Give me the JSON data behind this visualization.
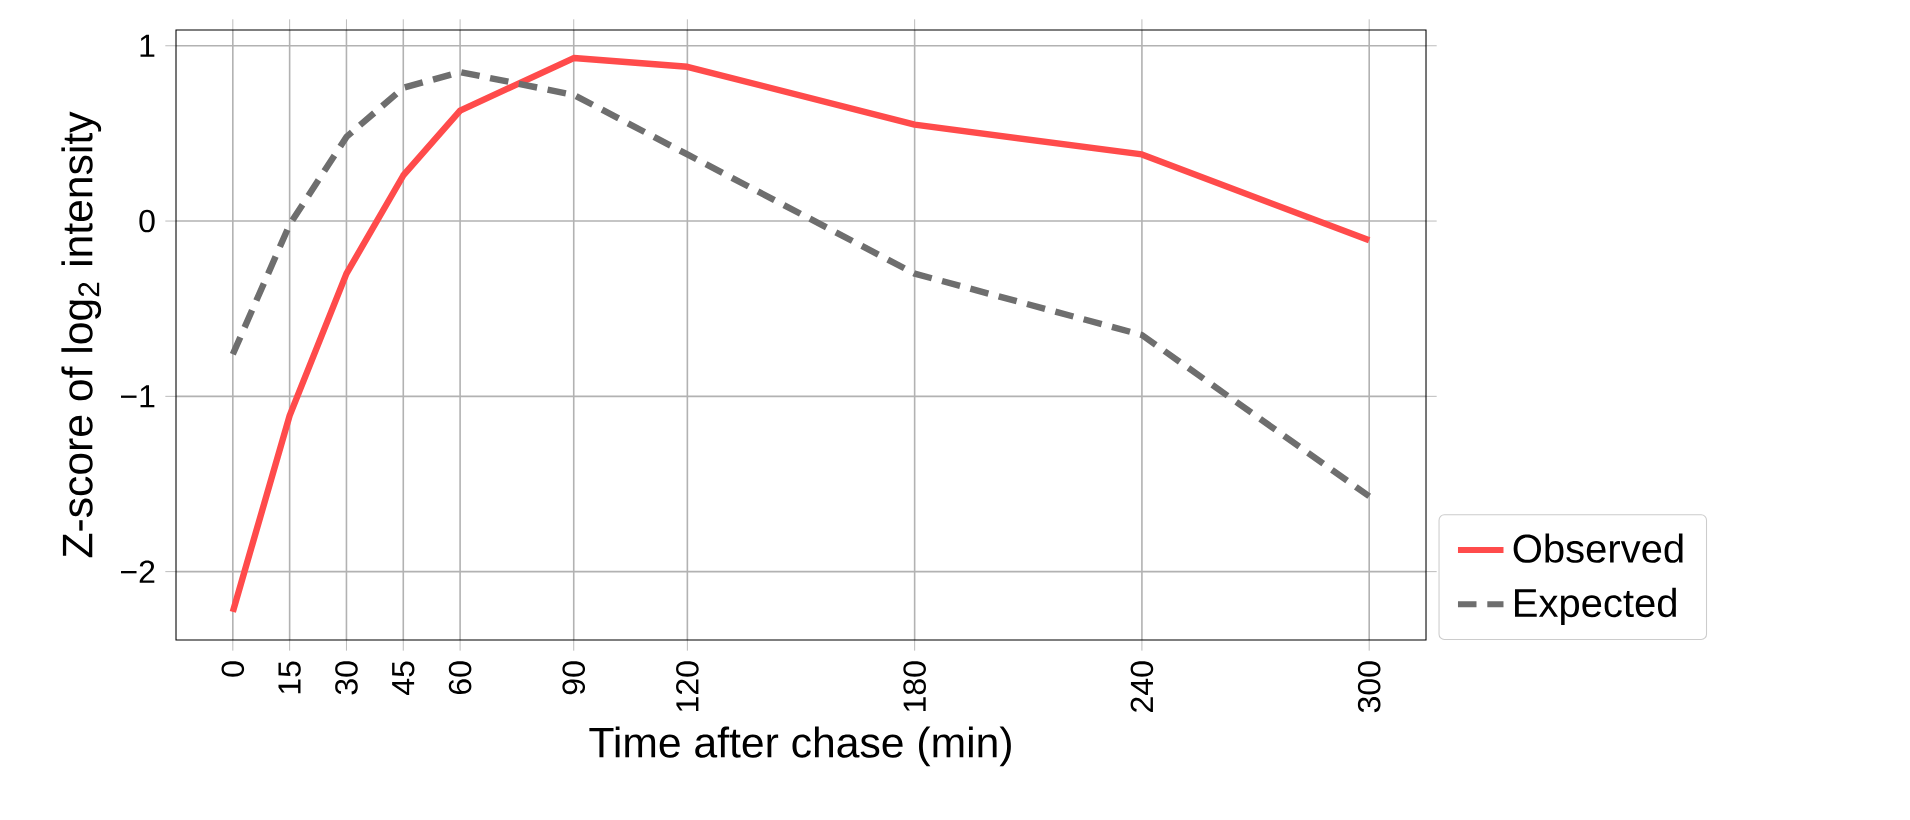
{
  "chart_data": {
    "type": "line",
    "xlabel": "Time after chase (min)",
    "ylabel": "Z-score of log$_{2}$ intensity",
    "x": [
      0,
      15,
      30,
      45,
      60,
      90,
      120,
      180,
      240,
      300
    ],
    "series": [
      {
        "name": "Observed",
        "color": "#ff4b4b",
        "line_style": "solid",
        "values": [
          -2.23,
          -1.11,
          -0.3,
          0.26,
          0.63,
          0.93,
          0.88,
          0.55,
          0.38,
          -0.11
        ]
      },
      {
        "name": "Expected",
        "color": "#6e6e6e",
        "line_style": "dashed",
        "values": [
          -0.76,
          -0.02,
          0.48,
          0.76,
          0.85,
          0.72,
          0.38,
          -0.3,
          -0.65,
          -1.57
        ]
      }
    ],
    "xlim": [
      -15,
      315
    ],
    "ylim": [
      -2.39,
      1.09
    ],
    "xticks": [
      0,
      15,
      30,
      45,
      60,
      90,
      120,
      180,
      240,
      300
    ],
    "yticks": [
      {
        "value": -2,
        "label": "−2"
      },
      {
        "value": -1,
        "label": "−1"
      },
      0,
      1
    ],
    "grid": true,
    "legend": "right",
    "marker": "none"
  }
}
